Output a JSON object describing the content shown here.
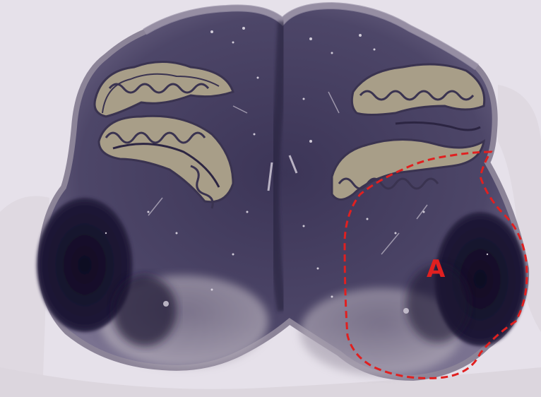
{
  "annotation": {
    "label": "A",
    "outline_color": "#e02020",
    "label_color": "#e02020"
  },
  "colors": {
    "background": "#e6e1ea",
    "tissue_light": "#b8b0ba",
    "tissue_mid": "#5a5370",
    "tissue_dark": "#2a2440",
    "tissue_darkest": "#14102a",
    "folia": "#a89e88",
    "folia_outline": "#3a3350"
  }
}
